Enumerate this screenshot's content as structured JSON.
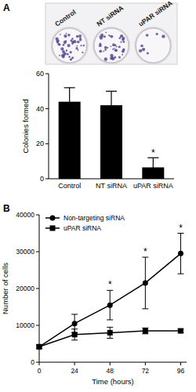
{
  "chart_data": [
    {
      "type": "bar",
      "panel": "A",
      "ylabel": "Colonies formed",
      "categories": [
        "Control",
        "NT siRNA",
        "uPAR siRNA"
      ],
      "values": [
        44,
        42,
        6.5
      ],
      "errors": [
        8,
        8,
        5.5
      ],
      "color": "#000000",
      "ylim": [
        0,
        60
      ],
      "yticks": [
        0,
        20,
        40,
        60
      ],
      "annotations": [
        {
          "text": "*",
          "category": 2
        }
      ]
    },
    {
      "type": "line",
      "panel": "B",
      "xlabel": "Time (hours)",
      "ylabel": "Number of cells",
      "x": [
        0,
        24,
        48,
        72,
        96
      ],
      "xlim": [
        0,
        100
      ],
      "xticks": [
        0,
        24,
        48,
        72,
        96
      ],
      "ylim": [
        0,
        40000
      ],
      "yticks": [
        0,
        10000,
        20000,
        30000,
        40000
      ],
      "legend": "upper left",
      "series": [
        {
          "name": "Non-targeting siRNA",
          "color": "#000000",
          "marker": "circle",
          "line_style": "solid",
          "values": [
            4200,
            10500,
            15500,
            21500,
            29500
          ],
          "errors": [
            500,
            2500,
            4000,
            7000,
            5500
          ]
        },
        {
          "name": "uPAR siRNA",
          "color": "#000000",
          "marker": "square",
          "line_style": "solid",
          "values": [
            4200,
            7500,
            8000,
            8500,
            8500
          ],
          "errors": [
            500,
            1500,
            1500,
            800,
            500
          ]
        }
      ],
      "annotations": [
        {
          "text": "*",
          "x": 48
        },
        {
          "text": "*",
          "x": 72
        },
        {
          "text": "*",
          "x": 96
        }
      ]
    }
  ]
}
